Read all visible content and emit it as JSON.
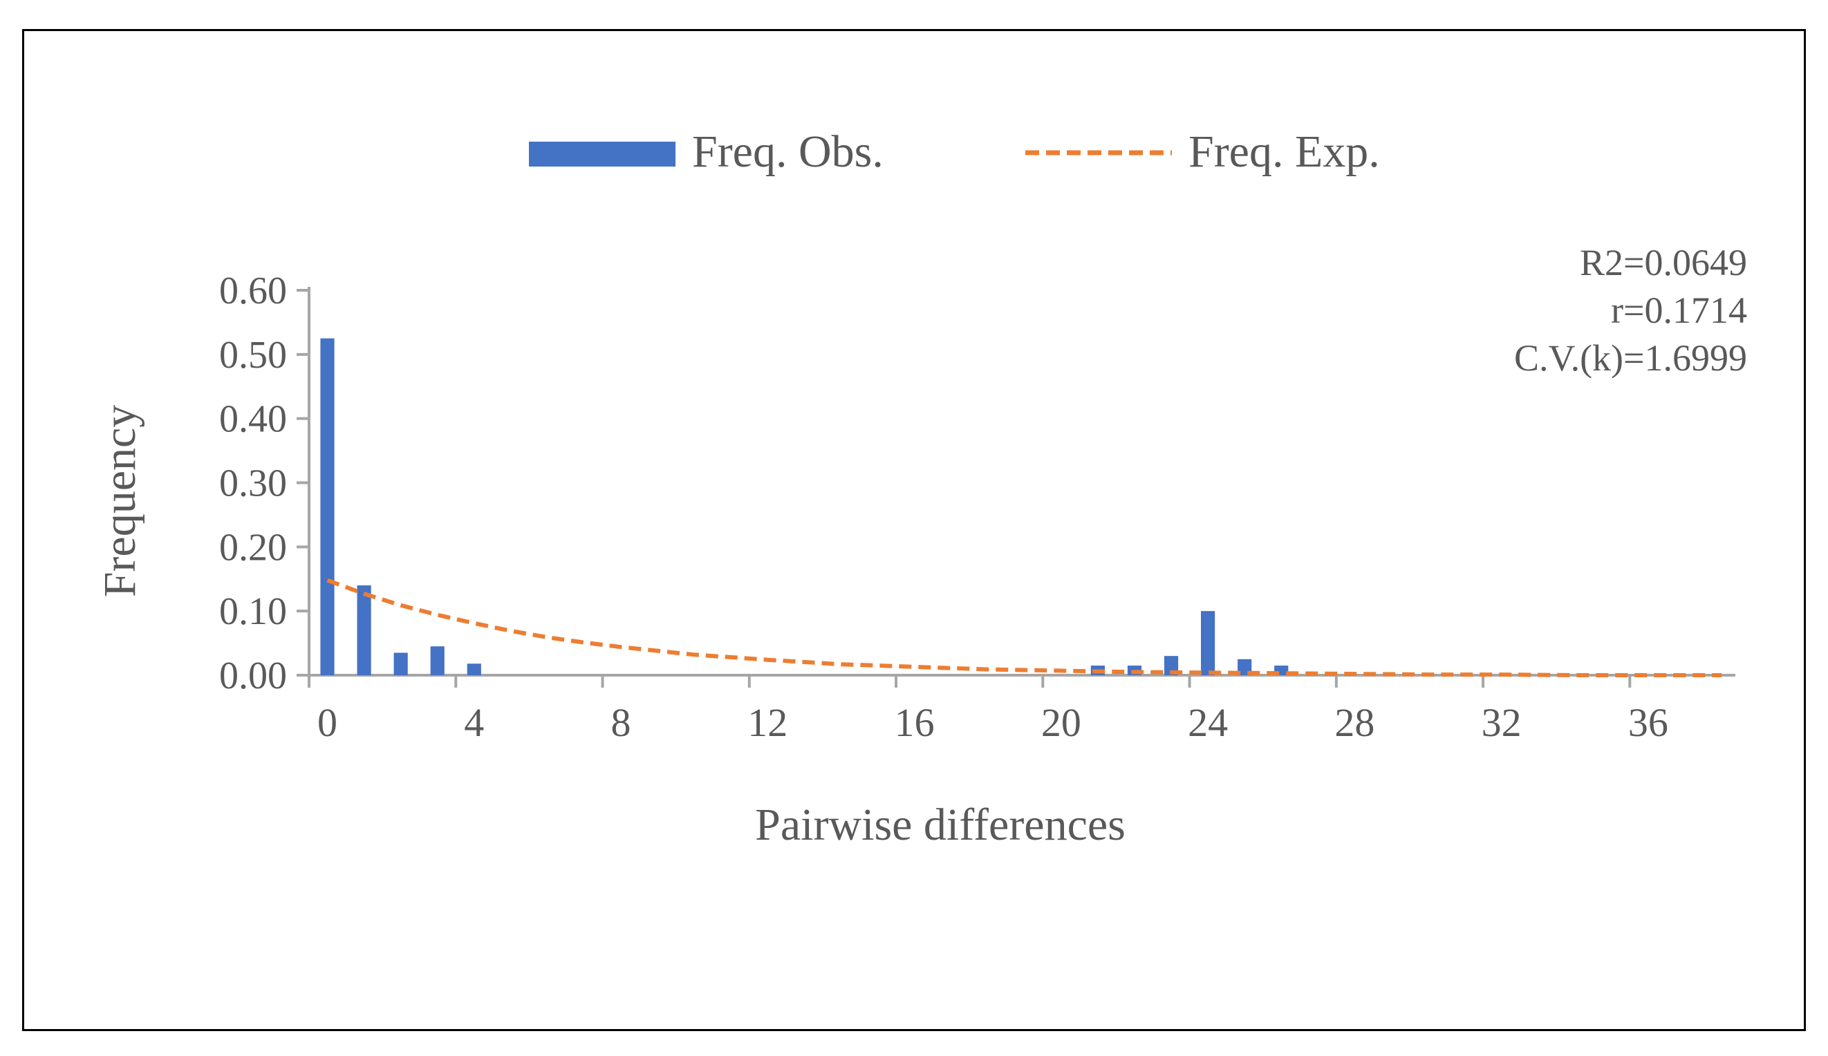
{
  "chart_data": {
    "type": "bar",
    "title": "",
    "xlabel": "Pairwise differences",
    "ylabel": "Frequency",
    "x_ticks": [
      "0",
      "4",
      "8",
      "12",
      "16",
      "20",
      "24",
      "28",
      "32",
      "36"
    ],
    "y_ticks": [
      "0.00",
      "0.10",
      "0.20",
      "0.30",
      "0.40",
      "0.50",
      "0.60"
    ],
    "xlim": [
      0,
      38
    ],
    "ylim": [
      0,
      0.6
    ],
    "grid": false,
    "legend_position": "top-center",
    "series": [
      {
        "name": "Freq. Obs.",
        "type": "bar",
        "color": "#4472C4",
        "x": [
          0,
          1,
          2,
          3,
          4,
          21,
          22,
          23,
          24,
          25,
          26
        ],
        "values": [
          0.525,
          0.14,
          0.035,
          0.045,
          0.018,
          0.015,
          0.015,
          0.03,
          0.1,
          0.025,
          0.015
        ]
      },
      {
        "name": "Freq. Exp.",
        "type": "line",
        "style": "dashed",
        "color": "#ED7D31",
        "x": [
          0,
          1,
          2,
          3,
          4,
          5,
          6,
          7,
          8,
          10,
          12,
          14,
          16,
          18,
          20,
          22,
          24,
          26,
          28,
          30,
          32,
          34,
          36,
          38
        ],
        "values": [
          0.148,
          0.127,
          0.109,
          0.094,
          0.081,
          0.069,
          0.059,
          0.051,
          0.044,
          0.032,
          0.024,
          0.017,
          0.013,
          0.009,
          0.007,
          0.005,
          0.004,
          0.003,
          0.002,
          0.001,
          0.001,
          0.0,
          0.0,
          0.0
        ]
      }
    ],
    "annotations": [
      "R2=0.0649",
      "r=0.1714",
      "C.V.(k)=1.6999"
    ]
  }
}
